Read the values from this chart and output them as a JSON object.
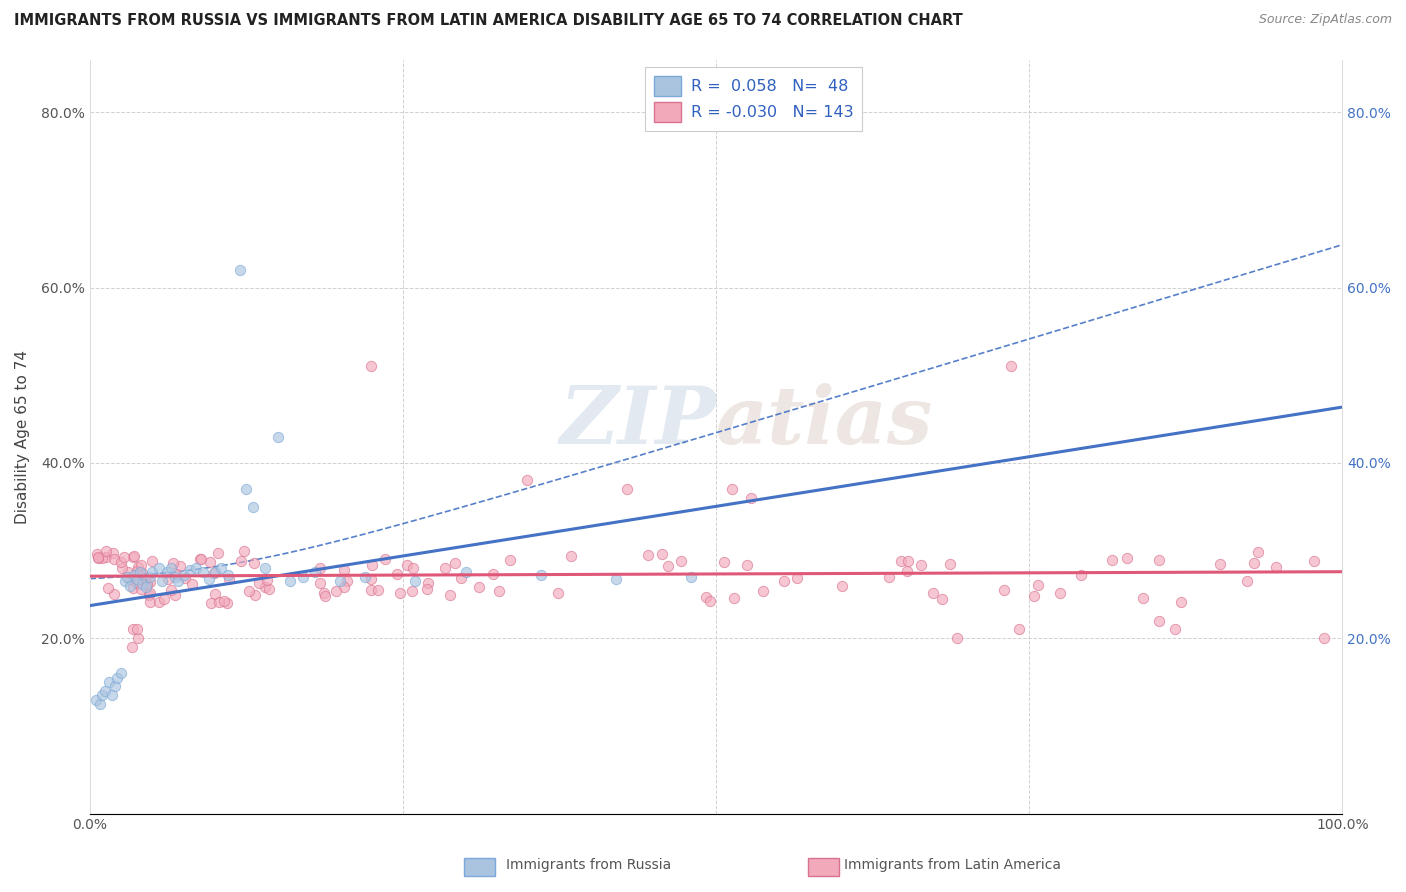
{
  "title": "IMMIGRANTS FROM RUSSIA VS IMMIGRANTS FROM LATIN AMERICA DISABILITY AGE 65 TO 74 CORRELATION CHART",
  "source": "Source: ZipAtlas.com",
  "ylabel": "Disability Age 65 to 74",
  "watermark": "ZIPatlas",
  "russia_R": 0.058,
  "russia_N": 48,
  "latam_R": -0.03,
  "latam_N": 143,
  "russia_color": "#aac4e0",
  "latam_color": "#f2aabb",
  "russia_line_color": "#4472c4",
  "latam_line_color": "#e05878",
  "russia_edge_color": "#7aa8d8",
  "latam_edge_color": "#d87090",
  "xlim": [
    0.0,
    1.0
  ],
  "ylim": [
    0.0,
    0.86
  ],
  "background_color": "#ffffff",
  "grid_color": "#cccccc",
  "title_color": "#222222",
  "legend_russia_label": "Immigrants from Russia",
  "legend_latam_label": "Immigrants from Latin America",
  "scatter_size": 55,
  "scatter_alpha": 0.65,
  "right_tick_color": "#4472c4"
}
